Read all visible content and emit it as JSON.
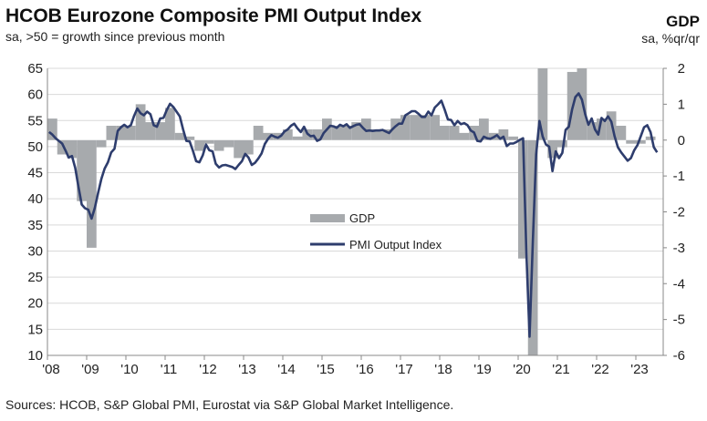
{
  "chart_data": {
    "type": "bar+line",
    "title": "HCOB Eurozone Composite PMI Output Index",
    "subtitle": "sa, >50 = growth since previous month",
    "right_axis_title": "GDP",
    "right_axis_subtitle": "sa, %qr/qr",
    "source": "Sources: HCOB, S&P Global PMI, Eurostat via S&P Global Market Intelligence.",
    "left_ylim": [
      10,
      65
    ],
    "left_ticks": [
      "65",
      "60",
      "55",
      "50",
      "45",
      "40",
      "35",
      "30",
      "25",
      "20",
      "15",
      "10"
    ],
    "right_ylim": [
      -6,
      2
    ],
    "right_ticks": [
      "2",
      "1",
      "0",
      "-1",
      "-2",
      "-3",
      "-4",
      "-5",
      "-6"
    ],
    "x_ticks": [
      "'08",
      "'09",
      "'10",
      "'11",
      "'12",
      "'13",
      "'14",
      "'15",
      "'16",
      "'17",
      "'18",
      "'19",
      "'20",
      "'21",
      "'22",
      "'23"
    ],
    "grid": true,
    "legend_placement": "center",
    "colors": {
      "gdp": "#a7aaad",
      "pmi": "#2e3d6d",
      "grid": "#d9d9d9"
    },
    "series": [
      {
        "name": "GDP",
        "type": "bar",
        "axis": "right",
        "frequency": "quarterly",
        "start": "2008-Q1",
        "values": [
          0.6,
          -0.4,
          -0.5,
          -1.7,
          -3.0,
          -0.2,
          0.4,
          0.4,
          0.4,
          1.0,
          0.5,
          0.5,
          0.9,
          0.2,
          0.1,
          -0.3,
          -0.1,
          -0.3,
          -0.2,
          -0.5,
          -0.4,
          0.4,
          0.2,
          0.2,
          0.3,
          0.1,
          0.3,
          0.3,
          0.6,
          0.4,
          0.4,
          0.5,
          0.6,
          0.3,
          0.3,
          0.6,
          0.7,
          0.7,
          0.7,
          0.7,
          0.4,
          0.4,
          0.2,
          0.4,
          0.6,
          0.2,
          0.3,
          0.1,
          -3.3,
          -11.6,
          12.6,
          -0.5,
          -0.2,
          1.9,
          2.2,
          0.5,
          0.6,
          0.8,
          0.4,
          -0.1,
          -0.1,
          0.1
        ]
      },
      {
        "name": "PMI Output Index",
        "type": "line",
        "axis": "left",
        "frequency": "monthly",
        "start": "2008-01",
        "values": [
          52.8,
          52.3,
          51.6,
          51.1,
          50.6,
          49.3,
          47.9,
          48.2,
          45.9,
          42.3,
          38.9,
          38.2,
          37.9,
          36.2,
          38.3,
          41.1,
          43.8,
          45.8,
          47.0,
          48.9,
          49.6,
          53.0,
          53.7,
          54.2,
          53.7,
          54.1,
          55.9,
          57.3,
          56.4,
          56.0,
          56.7,
          56.2,
          54.1,
          53.8,
          55.4,
          55.5,
          57.0,
          58.2,
          57.6,
          56.7,
          55.8,
          53.3,
          51.1,
          51.0,
          49.2,
          47.2,
          47.0,
          48.3,
          50.4,
          49.3,
          49.1,
          46.7,
          46.0,
          46.4,
          46.5,
          46.3,
          46.1,
          45.7,
          46.5,
          47.2,
          48.6,
          47.9,
          46.5,
          46.9,
          47.7,
          48.7,
          50.5,
          51.5,
          52.2,
          51.9,
          51.7,
          52.1,
          52.9,
          53.3,
          54.0,
          54.4,
          53.5,
          52.8,
          53.8,
          52.5,
          52.0,
          52.1,
          51.1,
          51.4,
          52.6,
          53.3,
          54.0,
          53.9,
          53.6,
          54.2,
          53.9,
          54.3,
          53.6,
          53.9,
          54.2,
          54.3,
          53.6,
          53.0,
          53.1,
          53.0,
          53.1,
          53.1,
          53.2,
          52.9,
          52.6,
          53.3,
          53.9,
          54.4,
          54.4,
          56.0,
          56.4,
          56.8,
          56.8,
          56.3,
          55.7,
          55.7,
          56.7,
          56.0,
          57.5,
          58.1,
          58.8,
          57.1,
          55.2,
          55.1,
          54.1,
          54.9,
          54.3,
          54.5,
          54.1,
          53.1,
          52.7,
          51.1,
          51.0,
          51.9,
          51.6,
          51.5,
          51.8,
          52.2,
          51.5,
          51.9,
          50.1,
          50.6,
          50.6,
          50.9,
          51.3,
          51.6,
          29.7,
          13.6,
          31.9,
          48.5,
          54.9,
          51.9,
          50.4,
          50.0,
          45.3,
          49.1,
          47.8,
          48.8,
          53.2,
          53.8,
          57.1,
          59.5,
          60.2,
          59.0,
          56.2,
          54.2,
          55.4,
          53.3,
          52.3,
          55.5,
          54.9,
          55.8,
          54.8,
          52.0,
          49.9,
          48.9,
          48.1,
          47.3,
          47.8,
          49.3,
          50.3,
          52.0,
          53.7,
          54.1,
          52.8,
          49.9,
          48.9
        ]
      }
    ]
  }
}
